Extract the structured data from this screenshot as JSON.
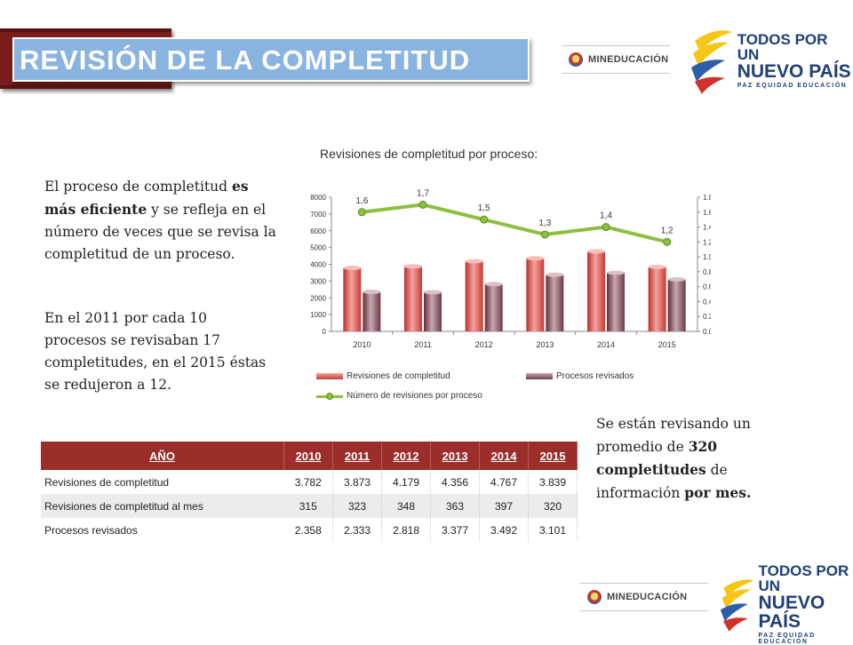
{
  "header": {
    "title": "REVISIÓN DE LA COMPLETITUD"
  },
  "logos": {
    "mineducacion": "MINEDUCACIÓN",
    "tpun_line1": "TODOS POR UN",
    "tpun_line2": "NUEVO PAÍS",
    "tpun_line3": "PAZ EQUIDAD EDUCACIÓN"
  },
  "left_text": {
    "p1_a": "El proceso de completitud",
    "p1_b": "es más eficiente",
    "p1_c": "y se refleja en el  número de veces que se revisa la completitud de un proceso.",
    "p2": "En el 2011 por cada 10 procesos se revisaban 17 completitudes, en el 2015 éstas se redujeron a  12."
  },
  "right_text": {
    "a": "Se están revisando un promedio de",
    "b": "320 completitudes",
    "c": "de información",
    "d": "por mes."
  },
  "chart_data": {
    "type": "bar",
    "title": "Revisiones de completitud por proceso:",
    "categories": [
      "2010",
      "2011",
      "2012",
      "2013",
      "2014",
      "2015"
    ],
    "series": [
      {
        "name": "Revisiones de completitud",
        "kind": "bar",
        "axis": "left",
        "color": "#d9534f",
        "values": [
          3782,
          3873,
          4179,
          4356,
          4767,
          3839
        ]
      },
      {
        "name": "Procesos revisados",
        "kind": "bar",
        "axis": "left",
        "color": "#7d5560",
        "values": [
          2358,
          2333,
          2818,
          3377,
          3492,
          3101
        ]
      },
      {
        "name": "Número de revisiones por proceso",
        "kind": "line",
        "axis": "right",
        "color": "#8dc03f",
        "values": [
          1.6,
          1.7,
          1.5,
          1.3,
          1.4,
          1.2
        ],
        "data_labels": [
          "1,6",
          "1,7",
          "1,5",
          "1,3",
          "1,4",
          "1,2"
        ]
      }
    ],
    "y_left": {
      "min": 0,
      "max": 8000,
      "ticks": [
        "0",
        "1000",
        "2000",
        "3000",
        "4000",
        "5000",
        "6000",
        "7000",
        "8000"
      ]
    },
    "y_right": {
      "min": 0,
      "max": 1.8,
      "ticks": [
        "0.0",
        "0.2",
        "0.4",
        "0.6",
        "0.8",
        "1.0",
        "1.2",
        "1.4",
        "1.6",
        "1.8"
      ]
    },
    "legend": "bottom",
    "grid": false
  },
  "table": {
    "header": [
      "AÑO",
      "2010",
      "2011",
      "2012",
      "2013",
      "2014",
      "2015"
    ],
    "rows": [
      [
        "Revisiones de completitud",
        "3.782",
        "3.873",
        "4.179",
        "4.356",
        "4.767",
        "3.839"
      ],
      [
        "Revisiones de completitud al mes",
        "315",
        "323",
        "348",
        "363",
        "397",
        "320"
      ],
      [
        "Procesos revisados",
        "2.358",
        "2.333",
        "2.818",
        "3.377",
        "3.492",
        "3.101"
      ]
    ]
  }
}
